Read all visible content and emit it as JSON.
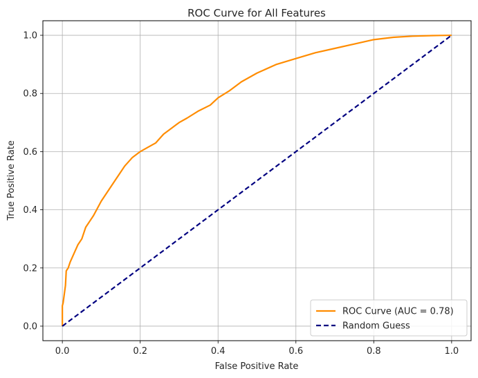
{
  "chart_data": {
    "type": "line",
    "title": "ROC Curve for All Features",
    "xlabel": "False Positive Rate",
    "ylabel": "True Positive Rate",
    "xlim": [
      -0.05,
      1.05
    ],
    "ylim": [
      -0.05,
      1.05
    ],
    "grid": true,
    "legend_position": "lower-right",
    "xticks": [
      "0.0",
      "0.2",
      "0.4",
      "0.6",
      "0.8",
      "1.0"
    ],
    "yticks": [
      "0.0",
      "0.2",
      "0.4",
      "0.6",
      "0.8",
      "1.0"
    ],
    "series": [
      {
        "name": "ROC Curve (AUC = 0.78)",
        "color": "#ff8c00",
        "style": "solid",
        "x": [
          0,
          0,
          0.002,
          0.005,
          0.008,
          0.01,
          0.015,
          0.02,
          0.03,
          0.04,
          0.05,
          0.06,
          0.07,
          0.08,
          0.1,
          0.12,
          0.14,
          0.16,
          0.18,
          0.2,
          0.22,
          0.24,
          0.26,
          0.28,
          0.3,
          0.32,
          0.35,
          0.38,
          0.4,
          0.43,
          0.46,
          0.5,
          0.55,
          0.6,
          0.65,
          0.7,
          0.75,
          0.8,
          0.85,
          0.9,
          0.95,
          1.0
        ],
        "y": [
          0,
          0.07,
          0.08,
          0.11,
          0.14,
          0.19,
          0.2,
          0.22,
          0.25,
          0.28,
          0.3,
          0.34,
          0.36,
          0.38,
          0.43,
          0.47,
          0.51,
          0.55,
          0.58,
          0.6,
          0.615,
          0.63,
          0.66,
          0.68,
          0.7,
          0.715,
          0.74,
          0.76,
          0.785,
          0.81,
          0.84,
          0.87,
          0.9,
          0.92,
          0.94,
          0.955,
          0.97,
          0.985,
          0.993,
          0.997,
          0.999,
          1.0
        ]
      },
      {
        "name": "Random Guess",
        "color": "#000080",
        "style": "dashed",
        "x": [
          0,
          1
        ],
        "y": [
          0,
          1
        ]
      }
    ]
  }
}
